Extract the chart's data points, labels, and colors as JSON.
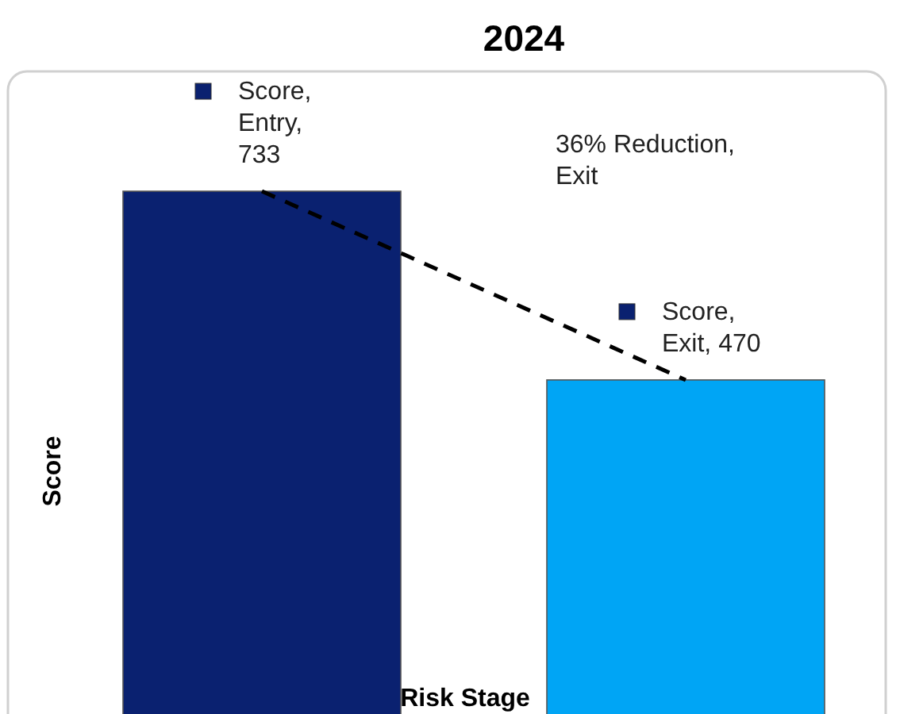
{
  "chart_data": {
    "type": "bar",
    "title": "2024",
    "xlabel": "Risk Stage",
    "ylabel": "Score",
    "categories": [
      null,
      null
    ],
    "ylim": [
      0,
      900
    ],
    "series": [
      {
        "colors": [
          "#0a2170",
          "#00a5f5"
        ],
        "values": [
          733,
          470
        ],
        "value_labels": [
          "Score, Entry, 733",
          "Score, Exit, 470"
        ]
      }
    ],
    "annotations": [
      "36% Reduction, Exit"
    ]
  }
}
